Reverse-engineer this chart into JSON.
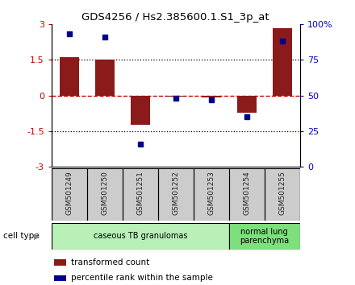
{
  "title": "GDS4256 / Hs2.385600.1.S1_3p_at",
  "samples": [
    "GSM501249",
    "GSM501250",
    "GSM501251",
    "GSM501252",
    "GSM501253",
    "GSM501254",
    "GSM501255"
  ],
  "transformed_counts": [
    1.62,
    1.52,
    -1.22,
    -0.05,
    -0.08,
    -0.72,
    2.82
  ],
  "percentile_ranks": [
    93,
    91,
    16,
    48,
    47,
    35,
    88
  ],
  "ylim_left": [
    -3,
    3
  ],
  "ylim_right": [
    0,
    100
  ],
  "yticks_left": [
    -3,
    -1.5,
    0,
    1.5,
    3
  ],
  "yticks_right": [
    0,
    25,
    50,
    75,
    100
  ],
  "ytick_labels_left": [
    "-3",
    "-1.5",
    "0",
    "1.5",
    "3"
  ],
  "ytick_labels_right": [
    "0",
    "25",
    "50",
    "75",
    "100%"
  ],
  "bar_color": "#8B1A1A",
  "dot_color": "#00008B",
  "bar_width": 0.55,
  "cell_type_groups": [
    {
      "label": "caseous TB granulomas",
      "start": 0,
      "end": 4,
      "color": "#b8f0b8"
    },
    {
      "label": "normal lung\nparenchyma",
      "start": 5,
      "end": 6,
      "color": "#7de07d"
    }
  ],
  "sample_box_color": "#cccccc",
  "legend_bar_label": "transformed count",
  "legend_dot_label": "percentile rank within the sample",
  "cell_type_label": "cell type",
  "background_color": "#ffffff"
}
